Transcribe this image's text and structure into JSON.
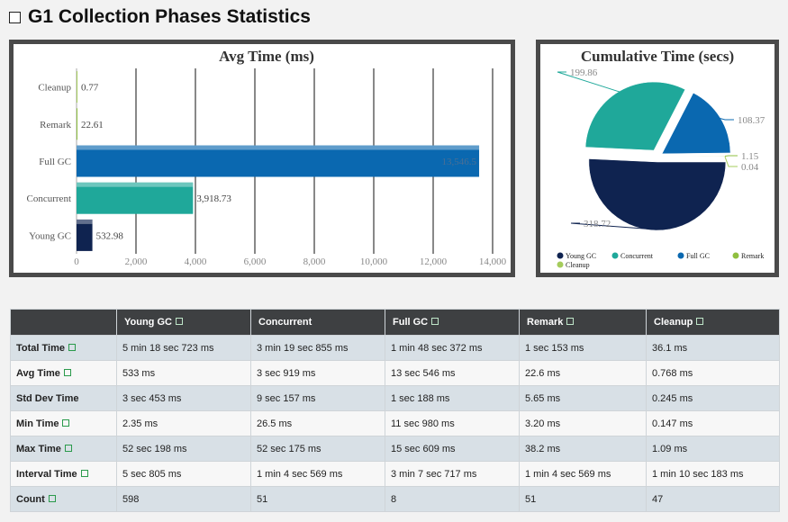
{
  "header": {
    "title": "G1 Collection Phases Statistics"
  },
  "colors": {
    "young_gc": "#0f2350",
    "concurrent": "#1fa89a",
    "full_gc": "#0a68b0",
    "remark": "#8fbf3f",
    "cleanup": "#a5cc5c"
  },
  "chart_data": [
    {
      "type": "bar",
      "orientation": "horizontal",
      "title": "Avg Time (ms)",
      "categories": [
        "Young GC",
        "Concurrent",
        "Full GC",
        "Remark",
        "Cleanup"
      ],
      "values": [
        532.98,
        3918.73,
        13546.5,
        22.61,
        0.77
      ],
      "value_labels": [
        "532.98",
        "3,918.73",
        "13,546.5",
        "22.61",
        "0.77"
      ],
      "xlim": [
        0,
        14000
      ],
      "x_ticks": [
        0,
        2000,
        4000,
        6000,
        8000,
        10000,
        12000,
        14000
      ],
      "x_tick_labels": [
        "0",
        "2,000",
        "4,000",
        "6,000",
        "8,000",
        "10,000",
        "12,000",
        "14,000"
      ],
      "grid": true
    },
    {
      "type": "pie",
      "title": "Cumulative Time (secs)",
      "categories": [
        "Young GC",
        "Concurrent",
        "Full GC",
        "Remark",
        "Cleanup"
      ],
      "values": [
        318.72,
        199.86,
        108.37,
        1.15,
        0.04
      ],
      "value_labels": [
        "318.72",
        "199.86",
        "108.37",
        "1.15",
        "0.04"
      ],
      "legend_placement": "bottom"
    }
  ],
  "table": {
    "columns": [
      {
        "label": "",
        "marker": false
      },
      {
        "label": "Young GC",
        "marker": true
      },
      {
        "label": "Concurrent",
        "marker": false
      },
      {
        "label": "Full GC",
        "marker": true
      },
      {
        "label": "Remark",
        "marker": true
      },
      {
        "label": "Cleanup",
        "marker": true
      }
    ],
    "rows": [
      {
        "label": "Total Time",
        "marker": true,
        "cells": [
          "5 min 18 sec 723 ms",
          "3 min 19 sec 855 ms",
          "1 min 48 sec 372 ms",
          "1 sec 153 ms",
          "36.1 ms"
        ]
      },
      {
        "label": "Avg Time",
        "marker": true,
        "cells": [
          "533 ms",
          "3 sec 919 ms",
          "13 sec 546 ms",
          "22.6 ms",
          "0.768 ms"
        ]
      },
      {
        "label": "Std Dev Time",
        "marker": false,
        "cells": [
          "3 sec 453 ms",
          "9 sec 157 ms",
          "1 sec 188 ms",
          "5.65 ms",
          "0.245 ms"
        ]
      },
      {
        "label": "Min Time",
        "marker": true,
        "cells": [
          "2.35 ms",
          "26.5 ms",
          "11 sec 980 ms",
          "3.20 ms",
          "0.147 ms"
        ]
      },
      {
        "label": "Max Time",
        "marker": true,
        "cells": [
          "52 sec 198 ms",
          "52 sec 175 ms",
          "15 sec 609 ms",
          "38.2 ms",
          "1.09 ms"
        ]
      },
      {
        "label": "Interval Time",
        "marker": true,
        "cells": [
          "5 sec 805 ms",
          "1 min 4 sec 569 ms",
          "3 min 7 sec 717 ms",
          "1 min 4 sec 569 ms",
          "1 min 10 sec 183 ms"
        ]
      },
      {
        "label": "Count",
        "marker": true,
        "cells": [
          "598",
          "51",
          "8",
          "51",
          "47"
        ]
      }
    ]
  }
}
